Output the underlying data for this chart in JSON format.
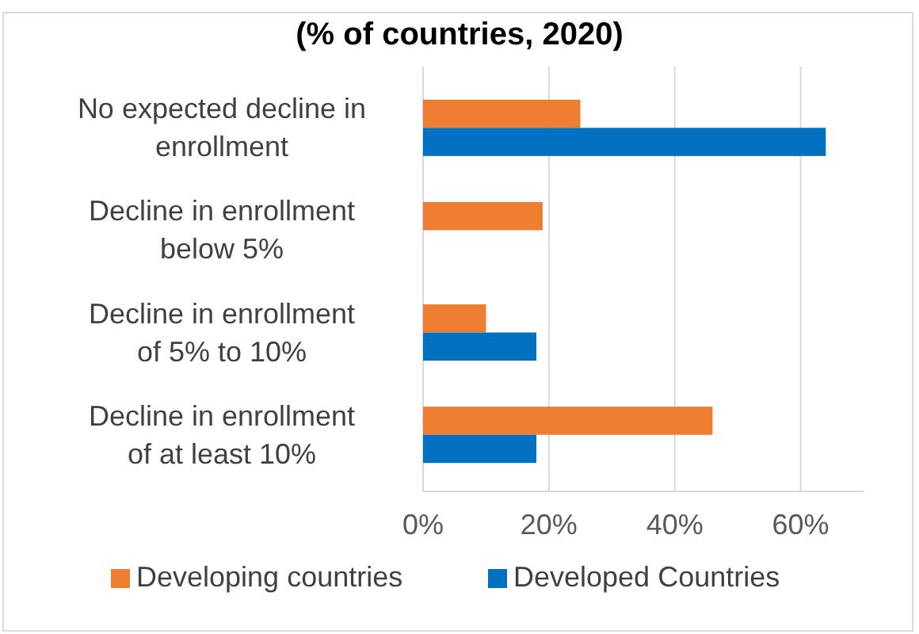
{
  "chart_data": {
    "type": "bar",
    "orientation": "horizontal",
    "title": "(% of countries, 2020)",
    "categories": [
      "No expected decline in enrollment",
      "Decline in enrollment below 5%",
      "Decline in enrollment of 5% to  10%",
      "Decline in enrollment of at least 10%"
    ],
    "series": [
      {
        "name": "Developing countries",
        "color": "#ed7d31",
        "values": [
          25,
          19,
          10,
          46
        ]
      },
      {
        "name": "Developed Countries",
        "color": "#0070c0",
        "values": [
          64,
          null,
          18,
          18
        ]
      }
    ],
    "xlim": [
      0,
      70
    ],
    "xticks": [
      {
        "value": 0,
        "label": "0%"
      },
      {
        "value": 20,
        "label": "20%"
      },
      {
        "value": 40,
        "label": "40%"
      },
      {
        "value": 60,
        "label": "60%"
      }
    ],
    "grid": "x",
    "legend": "bottom"
  }
}
